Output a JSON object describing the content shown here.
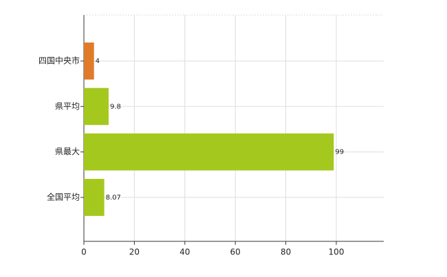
{
  "chart_data": {
    "type": "hbar",
    "categories": [
      "四国中央市",
      "県平均",
      "県最大",
      "全国平均"
    ],
    "values": [
      4,
      9.8,
      99,
      8.07
    ],
    "colors": [
      "#e07b2a",
      "#a5c81e",
      "#a5c81e",
      "#a5c81e"
    ],
    "xlim": [
      0,
      118.8
    ],
    "xticks": [
      0,
      20,
      40,
      60,
      80,
      100
    ],
    "grid": true
  }
}
